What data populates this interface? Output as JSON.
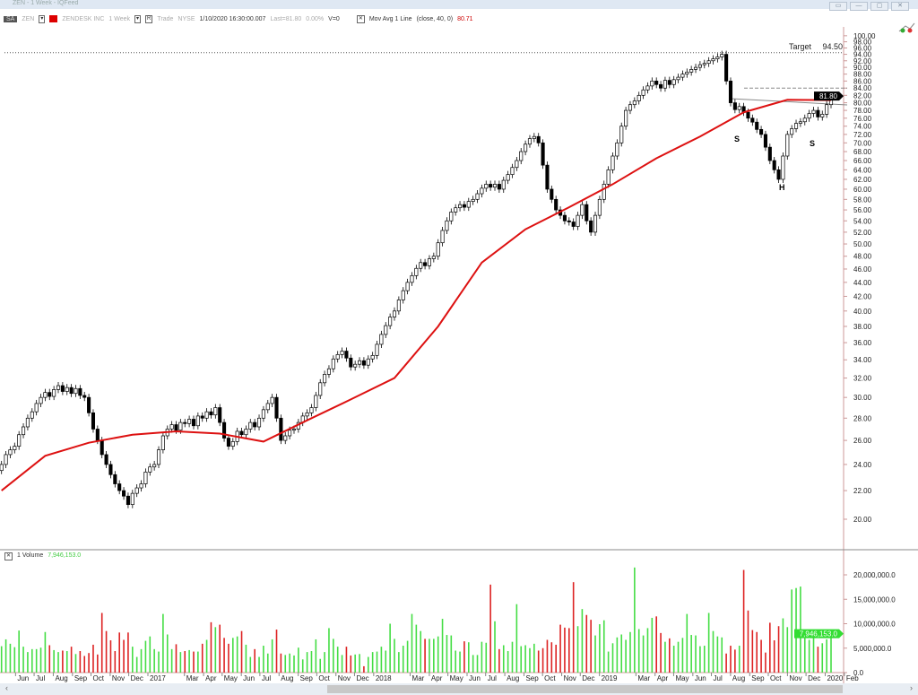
{
  "window": {
    "title": "ZEN - 1 Week - IQFeed",
    "buttons": [
      "restore-panel",
      "minimize",
      "maximize",
      "close"
    ]
  },
  "toolbar": {
    "badge": "SA",
    "symbol": "ZEN",
    "company": "ZENDESK INC",
    "period": "1 Week",
    "r_menu": "R",
    "trade": "Trade",
    "exchange": "NYSE",
    "datetime": "1/10/2020 16:30:00.007",
    "last": "Last=81.80",
    "change": "0.00%",
    "volume": "V=0",
    "indicator": "Mov Avg 1 Line",
    "indicator_params": "(close,  40,  0)",
    "indicator_value": "80.71"
  },
  "volume_panel": {
    "label": "1 Volume",
    "value": "7,946,153.0",
    "tag": "7,946,153.0"
  },
  "annotations": {
    "target_label": "Target",
    "target_value": "94.50",
    "price_tag": "81.80",
    "s_left": "S",
    "head": "H",
    "s_right": "S"
  },
  "colors": {
    "up_volume": "#44dd44",
    "down_volume": "#dd2222",
    "ma": "#dd1111",
    "candle_down": "#000000",
    "candle_up": "#ffffff"
  },
  "chart_data": {
    "type": "candlestick",
    "interval": "1 Week",
    "last_date": "2020-01-10",
    "y_scale": "log",
    "ylim": [
      19,
      101
    ],
    "price_ticks": [
      "20.00",
      "22.00",
      "24.00",
      "26.00",
      "28.00",
      "30.00",
      "32.00",
      "34.00",
      "36.00",
      "38.00",
      "40.00",
      "42.00",
      "44.00",
      "46.00",
      "48.00",
      "50.00",
      "52.00",
      "54.00",
      "56.00",
      "58.00",
      "60.00",
      "62.00",
      "64.00",
      "66.00",
      "68.00",
      "70.00",
      "72.00",
      "74.00",
      "76.00",
      "78.00",
      "80.00",
      "82.00",
      "84.00",
      "86.00",
      "88.00",
      "90.00",
      "92.00",
      "94.00",
      "96.00",
      "98.00",
      "100.00"
    ],
    "volume_ticks": [
      {
        "v": 0,
        "label": "0.0"
      },
      {
        "v": 5,
        "label": "5,000,000.0"
      },
      {
        "v": 10,
        "label": "10,000,000.0"
      },
      {
        "v": 15,
        "label": "15,000,000.0"
      },
      {
        "v": 20,
        "label": "20,000,000.0"
      }
    ],
    "months": [
      {
        "d": "2016-06-01",
        "t": "Jun"
      },
      {
        "d": "2016-07-01",
        "t": "Jul"
      },
      {
        "d": "2016-08-01",
        "t": "Aug"
      },
      {
        "d": "2016-09-01",
        "t": "Sep"
      },
      {
        "d": "2016-10-01",
        "t": "Oct"
      },
      {
        "d": "2016-11-01",
        "t": "Nov"
      },
      {
        "d": "2016-12-01",
        "t": "Dec"
      },
      {
        "d": "2017-01-01",
        "t": "2017"
      },
      {
        "d": "2017-03-01",
        "t": "Mar"
      },
      {
        "d": "2017-04-01",
        "t": "Apr"
      },
      {
        "d": "2017-05-01",
        "t": "May"
      },
      {
        "d": "2017-06-01",
        "t": "Jun"
      },
      {
        "d": "2017-07-01",
        "t": "Jul"
      },
      {
        "d": "2017-08-01",
        "t": "Aug"
      },
      {
        "d": "2017-09-01",
        "t": "Sep"
      },
      {
        "d": "2017-10-01",
        "t": "Oct"
      },
      {
        "d": "2017-11-01",
        "t": "Nov"
      },
      {
        "d": "2017-12-01",
        "t": "Dec"
      },
      {
        "d": "2018-01-01",
        "t": "2018"
      },
      {
        "d": "2018-03-01",
        "t": "Mar"
      },
      {
        "d": "2018-04-01",
        "t": "Apr"
      },
      {
        "d": "2018-05-01",
        "t": "May"
      },
      {
        "d": "2018-06-01",
        "t": "Jun"
      },
      {
        "d": "2018-07-01",
        "t": "Jul"
      },
      {
        "d": "2018-08-01",
        "t": "Aug"
      },
      {
        "d": "2018-09-01",
        "t": "Sep"
      },
      {
        "d": "2018-10-01",
        "t": "Oct"
      },
      {
        "d": "2018-11-01",
        "t": "Nov"
      },
      {
        "d": "2018-12-01",
        "t": "Dec"
      },
      {
        "d": "2019-01-01",
        "t": "2019"
      },
      {
        "d": "2019-03-01",
        "t": "Mar"
      },
      {
        "d": "2019-04-01",
        "t": "Apr"
      },
      {
        "d": "2019-05-01",
        "t": "May"
      },
      {
        "d": "2019-06-01",
        "t": "Jun"
      },
      {
        "d": "2019-07-01",
        "t": "Jul"
      },
      {
        "d": "2019-08-01",
        "t": "Aug"
      },
      {
        "d": "2019-09-01",
        "t": "Sep"
      },
      {
        "d": "2019-10-01",
        "t": "Oct"
      },
      {
        "d": "2019-11-01",
        "t": "Nov"
      },
      {
        "d": "2019-12-01",
        "t": "Dec"
      },
      {
        "d": "2020-01-01",
        "t": "2020"
      },
      {
        "d": "2020-02-01",
        "t": "Feb"
      }
    ],
    "closes": [
      24,
      24.8,
      25.2,
      25.5,
      26.5,
      27.2,
      28,
      28.6,
      29.4,
      30,
      30.5,
      30.1,
      30.8,
      31.2,
      30.6,
      31,
      30.4,
      30.9,
      30.2,
      30,
      28.5,
      27,
      26,
      24.8,
      24,
      23.2,
      22.5,
      22,
      21.6,
      21,
      21.8,
      22.2,
      22.5,
      23.4,
      23.8,
      24,
      25.2,
      26.4,
      27,
      27.4,
      26.9,
      27.6,
      27.5,
      27.9,
      27.3,
      28.2,
      28,
      28.6,
      28.3,
      29,
      27.6,
      26.2,
      25.5,
      25.9,
      26.8,
      26.5,
      27,
      27.6,
      27.2,
      28,
      28.8,
      29.4,
      30,
      28,
      26,
      26.4,
      26.9,
      27,
      27.6,
      28.2,
      28.5,
      29,
      30.2,
      31.5,
      32.4,
      33,
      34.1,
      34.6,
      35,
      34.2,
      33.2,
      33.5,
      33.9,
      33.4,
      34.1,
      34.5,
      35.8,
      37,
      38.1,
      39.2,
      40,
      41.5,
      42.8,
      44,
      45,
      46.1,
      47,
      46.5,
      47.6,
      48,
      50.2,
      52.3,
      54,
      55.6,
      56.4,
      57,
      56.5,
      57.6,
      58,
      59.1,
      60.2,
      61,
      60.4,
      61,
      60,
      61.8,
      63,
      64.5,
      66,
      68,
      69.7,
      71,
      71.5,
      70,
      65,
      60,
      58,
      56,
      55,
      54,
      53.8,
      53,
      55,
      57,
      54,
      52,
      55,
      58,
      61,
      64,
      67,
      70,
      74,
      78,
      79.5,
      80.5,
      82,
      83.5,
      84.6,
      86,
      85,
      84,
      86.2,
      85,
      86.4,
      87.1,
      88,
      88.6,
      89.4,
      90,
      90.8,
      91.2,
      92,
      92.6,
      93.2,
      94,
      86,
      80,
      78.2,
      79,
      77.5,
      76,
      75,
      73.2,
      72,
      69,
      66,
      64,
      62,
      67,
      72,
      73.4,
      74.7,
      75.1,
      76,
      77.2,
      78,
      76.3,
      77,
      79.5,
      81.8
    ],
    "volumes_millions": [
      5.4,
      6.8,
      5.9,
      5.2,
      8.6,
      5.3,
      4.2,
      4.8,
      4.8,
      5.1,
      8.3,
      5.6,
      4.6,
      4.2,
      4.5,
      4.4,
      5.3,
      3.8,
      4.4,
      3.4,
      4,
      5.7,
      3.7,
      12.2,
      8.5,
      6.6,
      4.4,
      8.2,
      6.7,
      8.2,
      5.3,
      3.2,
      4.8,
      6.5,
      7.4,
      4.8,
      4.3,
      12,
      7.8,
      4.8,
      5.8,
      4.2,
      4.4,
      4.6,
      4.3,
      4.3,
      5.9,
      6.7,
      10.3,
      9.3,
      9.8,
      7.1,
      5.9,
      7.1,
      7.4,
      8.5,
      5.7,
      3.2,
      4.8,
      3.2,
      5.5,
      3.9,
      6.8,
      8.8,
      3.9,
      3.6,
      3.9,
      3.5,
      5.1,
      2.7,
      4.2,
      4.4,
      6.8,
      2.8,
      4.2,
      9.1,
      6.9,
      5.3,
      3.6,
      5.3,
      3.5,
      3.7,
      3.8,
      1.3,
      3.2,
      4.2,
      4.3,
      5.3,
      4.5,
      10,
      6.9,
      4.2,
      5.5,
      6.5,
      12,
      9.8,
      8.5,
      6.9,
      6.9,
      6.9,
      7.4,
      11,
      7.7,
      7.6,
      4.5,
      4.3,
      6.4,
      6.2,
      3.6,
      3.6,
      6.3,
      6.1,
      18,
      10.5,
      4.8,
      5.6,
      4.4,
      6.3,
      14,
      5.4,
      5.6,
      5,
      5.9,
      4.5,
      5,
      6.7,
      6.2,
      5.7,
      9.8,
      9.2,
      9.1,
      18.5,
      9.5,
      13,
      11.8,
      10.8,
      7.6,
      9.9,
      10.7,
      4.3,
      6,
      7.2,
      7.8,
      6.7,
      8.3,
      21.5,
      8.9,
      7.6,
      9.1,
      11.2,
      11.5,
      8.1,
      6.3,
      7,
      5.5,
      6.3,
      7.1,
      12,
      7.7,
      7.6,
      5.4,
      5.5,
      12.2,
      8.5,
      7.4,
      7.2,
      3.9,
      5.5,
      4.7,
      5.5,
      21,
      12.7,
      8.7,
      8.3,
      6.7,
      4.1,
      10.2,
      6.6,
      9.5,
      11.1,
      9.3,
      17,
      17.3,
      17.6,
      7.5,
      6.7,
      8.3,
      5.3,
      6,
      6.8,
      7.95
    ],
    "moving_average": {
      "name": "Mov Avg 1 Line",
      "period": 40,
      "every_10_weeks": [
        22,
        24.7,
        25.8,
        26.5,
        26.8,
        26.6,
        25.9,
        27.8,
        29.8,
        32,
        38,
        47,
        52.5,
        56.5,
        61,
        66.5,
        71.5,
        77.5,
        80.8,
        80.71
      ]
    },
    "target": 94.5,
    "neckline_dashed": 84
  }
}
